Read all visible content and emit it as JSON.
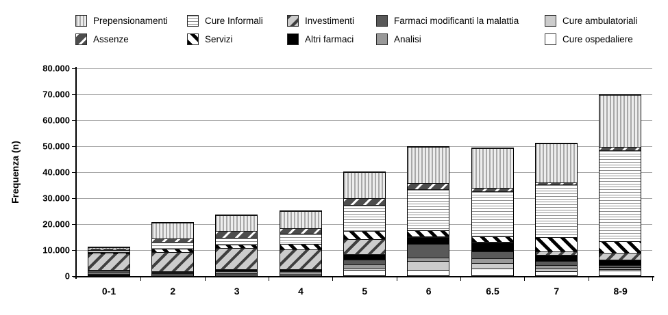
{
  "figure": {
    "ylabel": "Frequenza (n)"
  },
  "legend": {
    "items": [
      {
        "id": "prepensionamenti",
        "label": "Prepensionamenti"
      },
      {
        "id": "cure-informali",
        "label": "Cure Informali"
      },
      {
        "id": "investimenti",
        "label": "Investimenti"
      },
      {
        "id": "farmaci-modificanti",
        "label": "Farmaci modificanti la malattia"
      },
      {
        "id": "cure-ambulatoriali",
        "label": "Cure ambulatoriali"
      },
      {
        "id": "assenze",
        "label": "Assenze"
      },
      {
        "id": "servizi",
        "label": "Servizi"
      },
      {
        "id": "altri-farmaci",
        "label": "Altri farmaci"
      },
      {
        "id": "analisi",
        "label": "Analisi"
      },
      {
        "id": "cure-ospedaliere",
        "label": "Cure ospedaliere"
      }
    ]
  },
  "chart_data": {
    "type": "bar",
    "stacked": true,
    "title": "",
    "xlabel": "",
    "ylabel": "Frequenza (n)",
    "ylim": [
      0,
      80000
    ],
    "ytick_step": 10000,
    "ytick_labels": [
      "0",
      "10.000",
      "20.000",
      "30.000",
      "40.000",
      "50.000",
      "60.000",
      "70.000",
      "80.000"
    ],
    "categories": [
      "0-1",
      "2",
      "3",
      "4",
      "5",
      "6",
      "6.5",
      "7",
      "8-9"
    ],
    "grid": "horizontal",
    "legend_position": "top",
    "stack_order_bottom_to_top": [
      "cure-ospedaliere",
      "cure-ambulatoriali",
      "analisi",
      "farmaci-modificanti",
      "altri-farmaci",
      "investimenti",
      "servizi",
      "cure-informali",
      "assenze",
      "prepensionamenti"
    ],
    "series": [
      {
        "id": "cure-ospedaliere",
        "name": "Cure ospedaliere",
        "values": [
          300,
          500,
          500,
          500,
          2100,
          2200,
          2700,
          1600,
          1800
        ]
      },
      {
        "id": "cure-ambulatoriali",
        "name": "Cure ambulatoriali",
        "values": [
          300,
          300,
          300,
          500,
          800,
          3400,
          2100,
          1100,
          500
        ]
      },
      {
        "id": "analisi",
        "name": "Analisi",
        "values": [
          500,
          300,
          800,
          400,
          1300,
          1300,
          1800,
          1300,
          800
        ]
      },
      {
        "id": "farmaci-modificanti",
        "name": "Farmaci modificanti la malattia",
        "values": [
          800,
          300,
          300,
          300,
          1800,
          5300,
          2600,
          1600,
          800
        ]
      },
      {
        "id": "altri-farmaci",
        "name": "Altri farmaci",
        "values": [
          300,
          300,
          500,
          500,
          2100,
          2600,
          3400,
          2400,
          2100
        ]
      },
      {
        "id": "investimenti",
        "name": "Investimenti",
        "values": [
          6300,
          7400,
          8200,
          7700,
          5800,
          300,
          300,
          1300,
          2600
        ]
      },
      {
        "id": "servizi",
        "name": "Servizi",
        "values": [
          500,
          1300,
          1300,
          2100,
          3200,
          2400,
          2100,
          5500,
          4500
        ]
      },
      {
        "id": "cure-informali",
        "name": "Cure Informali",
        "values": [
          800,
          2600,
          2600,
          4000,
          10000,
          15800,
          17400,
          20300,
          35100
        ]
      },
      {
        "id": "assenze",
        "name": "Assenze",
        "values": [
          400,
          1300,
          2600,
          2100,
          2600,
          2400,
          1300,
          800,
          1300
        ]
      },
      {
        "id": "prepensionamenti",
        "name": "Prepensionamenti",
        "values": [
          500,
          6100,
          6100,
          6600,
          10000,
          14000,
          15300,
          15000,
          20000
        ]
      }
    ],
    "colors": {
      "black": "#000000",
      "dark_gray": "#595959",
      "gray": "#999999",
      "light_gray": "#cccccc",
      "white": "#ffffff",
      "gridline": "#a6a6a6"
    }
  }
}
